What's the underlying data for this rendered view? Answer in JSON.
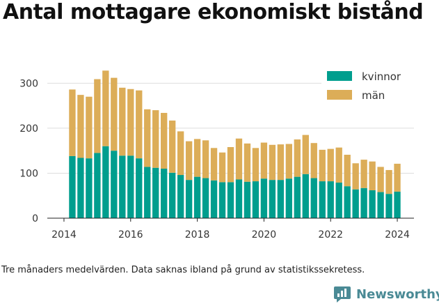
{
  "title": "Antal mottagare ekonomiskt bistånd",
  "caption": "Tre månaders medelvärden. Data saknas ibland på grund av statistikssekretess.",
  "brand": {
    "name": "Newsworthy",
    "icon": "newsworthy-chart-bubble-icon",
    "color": "#4a8a95"
  },
  "colors": {
    "kvinnor": "#009e8e",
    "man": "#dcad58",
    "grid": "#dddddd"
  },
  "chart_data": {
    "type": "bar",
    "stacked": true,
    "title": "",
    "xlabel": "",
    "ylabel": "",
    "x": [
      2014.25,
      2014.5,
      2014.75,
      2015.0,
      2015.25,
      2015.5,
      2015.75,
      2016.0,
      2016.25,
      2016.5,
      2016.75,
      2017.0,
      2017.25,
      2017.5,
      2017.75,
      2018.0,
      2018.25,
      2018.5,
      2018.75,
      2019.0,
      2019.25,
      2019.5,
      2019.75,
      2020.0,
      2020.25,
      2020.5,
      2020.75,
      2021.0,
      2021.25,
      2021.5,
      2021.75,
      2022.0,
      2022.25,
      2022.5,
      2022.75,
      2023.0,
      2023.25,
      2023.5,
      2023.75,
      2024.0
    ],
    "series": [
      {
        "name": "kvinnor",
        "values": [
          138,
          134,
          133,
          145,
          160,
          150,
          139,
          139,
          133,
          114,
          112,
          110,
          101,
          96,
          85,
          92,
          89,
          84,
          80,
          80,
          86,
          81,
          82,
          88,
          85,
          85,
          88,
          92,
          98,
          89,
          82,
          82,
          79,
          71,
          64,
          67,
          62,
          58,
          54,
          59
        ]
      },
      {
        "name": "män",
        "values": [
          148,
          140,
          137,
          164,
          168,
          162,
          151,
          148,
          151,
          128,
          128,
          124,
          116,
          97,
          86,
          84,
          84,
          72,
          66,
          78,
          91,
          85,
          74,
          80,
          78,
          79,
          77,
          83,
          87,
          78,
          70,
          72,
          78,
          70,
          58,
          63,
          64,
          56,
          53,
          62
        ]
      }
    ],
    "xticks": [
      "2014",
      "2016",
      "2018",
      "2020",
      "2022",
      "2024"
    ],
    "yticks": [
      "0",
      "100",
      "200",
      "300"
    ],
    "xlim": [
      2013.5,
      2024.5
    ],
    "ylim": [
      0,
      330
    ],
    "grid": true,
    "legend": {
      "position": "top-right",
      "entries": [
        "kvinnor",
        "män"
      ]
    }
  }
}
